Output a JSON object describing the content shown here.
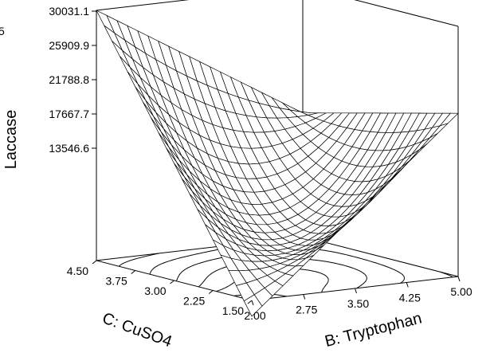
{
  "chart_data": {
    "type": "surface3d",
    "title": "",
    "zlabel": "Laccase",
    "xlabel": "B: Tryptophan",
    "ylabel": "C: CuSO4",
    "z_ticks": [
      "13546.6",
      "17667.7",
      "21788.8",
      "25909.9",
      "30031.1"
    ],
    "x_ticks": [
      "2.00",
      "2.75",
      "3.50",
      "4.25",
      "5.00"
    ],
    "y_ticks": [
      "1.50",
      "2.25",
      "3.00",
      "3.75",
      "4.50"
    ],
    "xlim": [
      2.0,
      5.0
    ],
    "ylim": [
      1.5,
      4.5
    ],
    "zlim": [
      13546.6,
      30031.1
    ],
    "surface_corners": {
      "B_2.00_C_1.50": 12500,
      "B_5.00_C_1.50": 24300,
      "B_2.00_C_4.50": 30031.1,
      "B_5.00_C_4.50": 21700
    },
    "surface_min_region": "center",
    "grid": 20,
    "contours_on_floor": true,
    "clipped_left_label": "5"
  }
}
